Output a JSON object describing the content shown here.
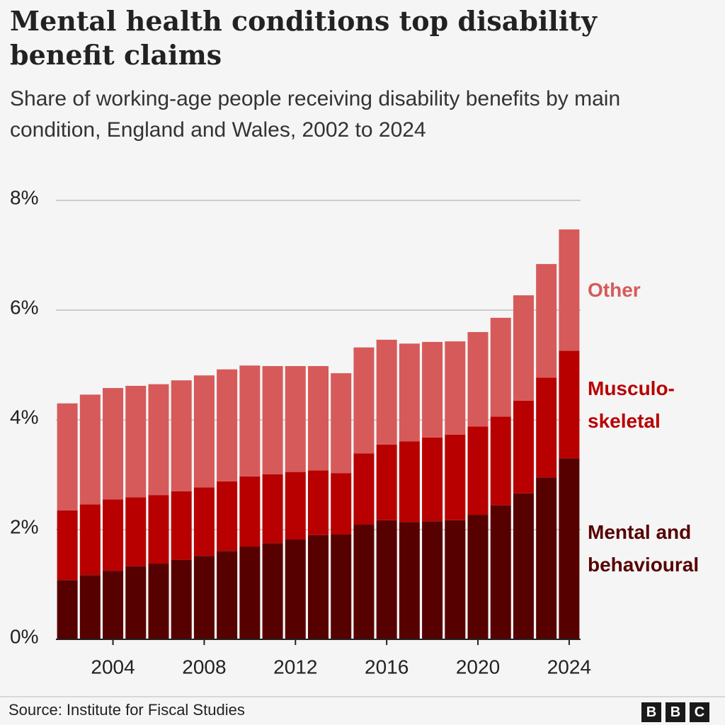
{
  "chart_data": {
    "type": "stacked_bar",
    "title": "Mental health conditions top disability benefit claims",
    "subtitle": "Share of working-age people receiving disability benefits by main condition, England and Wales, 2002 to 2024",
    "source": "Source: Institute for Fiscal Studies",
    "x": [
      2002,
      2003,
      2004,
      2005,
      2006,
      2007,
      2008,
      2009,
      2010,
      2011,
      2012,
      2013,
      2014,
      2015,
      2016,
      2017,
      2018,
      2019,
      2020,
      2021,
      2022,
      2023,
      2024
    ],
    "xlim": [
      2001.5,
      2024.5
    ],
    "xticks": [
      2004,
      2008,
      2012,
      2016,
      2020,
      2024
    ],
    "ylim": [
      0,
      8
    ],
    "yticks": [
      {
        "value": 0,
        "label": "0%"
      },
      {
        "value": 2,
        "label": "2%"
      },
      {
        "value": 4,
        "label": "4%"
      },
      {
        "value": 6,
        "label": "6%"
      },
      {
        "value": 8,
        "label": "8%"
      }
    ],
    "grid": true,
    "series": [
      {
        "name": "Mental and behavioural",
        "color": "#560000",
        "values": [
          1.08,
          1.17,
          1.25,
          1.33,
          1.38,
          1.45,
          1.52,
          1.61,
          1.69,
          1.75,
          1.82,
          1.9,
          1.91,
          2.09,
          2.17,
          2.14,
          2.15,
          2.17,
          2.27,
          2.44,
          2.66,
          2.95,
          3.3
        ]
      },
      {
        "name": "Musculo-skeletal",
        "color": "#b80000",
        "values": [
          1.27,
          1.29,
          1.3,
          1.26,
          1.25,
          1.25,
          1.25,
          1.27,
          1.28,
          1.26,
          1.23,
          1.18,
          1.12,
          1.3,
          1.38,
          1.47,
          1.53,
          1.56,
          1.61,
          1.62,
          1.69,
          1.82,
          1.96
        ]
      },
      {
        "name": "Other",
        "color": "#d65a5a",
        "values": [
          1.95,
          2.0,
          2.03,
          2.03,
          2.02,
          2.02,
          2.04,
          2.04,
          2.02,
          1.97,
          1.93,
          1.9,
          1.82,
          1.93,
          1.91,
          1.78,
          1.74,
          1.7,
          1.72,
          1.8,
          1.92,
          2.07,
          2.21
        ]
      }
    ]
  }
}
